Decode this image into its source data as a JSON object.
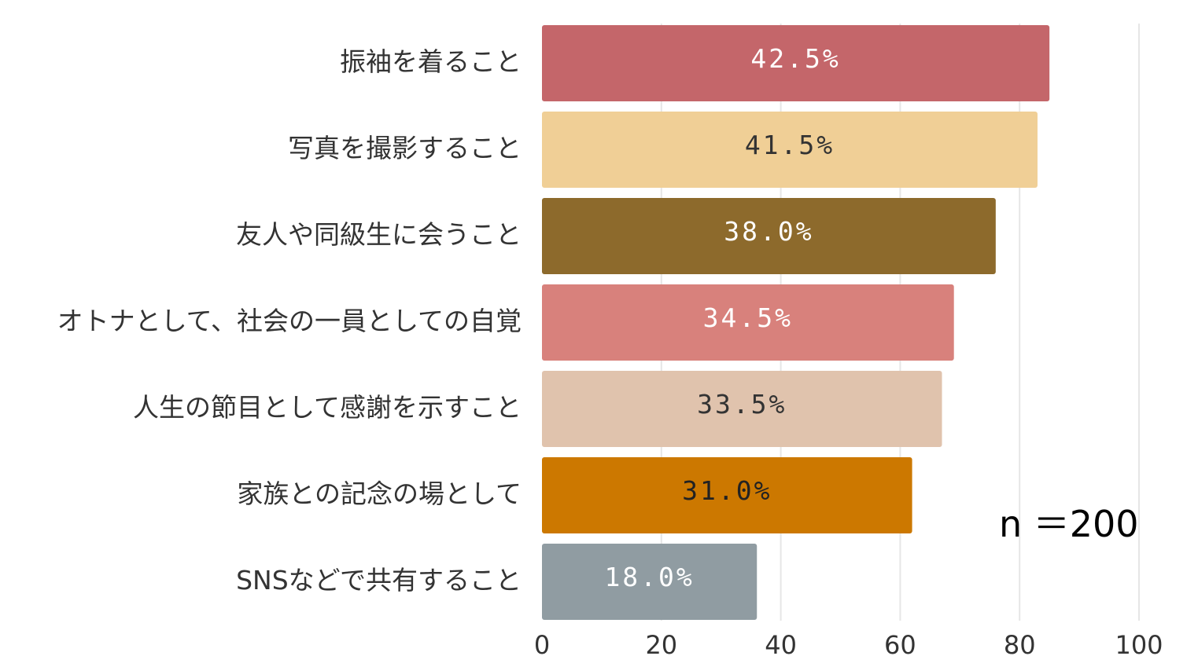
{
  "chart_data": {
    "type": "bar",
    "orientation": "horizontal",
    "categories": [
      "振袖を着ること",
      "写真を撮影すること",
      "友人や同級生に会うこと",
      "オトナとして、社会の一員としての自覚",
      "人生の節目として感謝を示すこと",
      "家族との記念の場として",
      "SNSなどで共有すること"
    ],
    "values": [
      85,
      83,
      76,
      69,
      67,
      62,
      36
    ],
    "data_labels": [
      "42.5%",
      "41.5%",
      "38.0%",
      "34.5%",
      "33.5%",
      "31.0%",
      "18.0%"
    ],
    "colors": [
      "#c4666a",
      "#f0cf96",
      "#8d6a2c",
      "#d8817c",
      "#e0c3ad",
      "#cc7800",
      "#909ca2"
    ],
    "label_colors": [
      "#ffffff",
      "#333333",
      "#ffffff",
      "#ffffff",
      "#333333",
      "#222222",
      "#ffffff"
    ],
    "xlim": [
      0,
      100
    ],
    "xticks": [
      0,
      20,
      40,
      60,
      80,
      100
    ],
    "grid": true,
    "annotation": "n ＝200"
  }
}
